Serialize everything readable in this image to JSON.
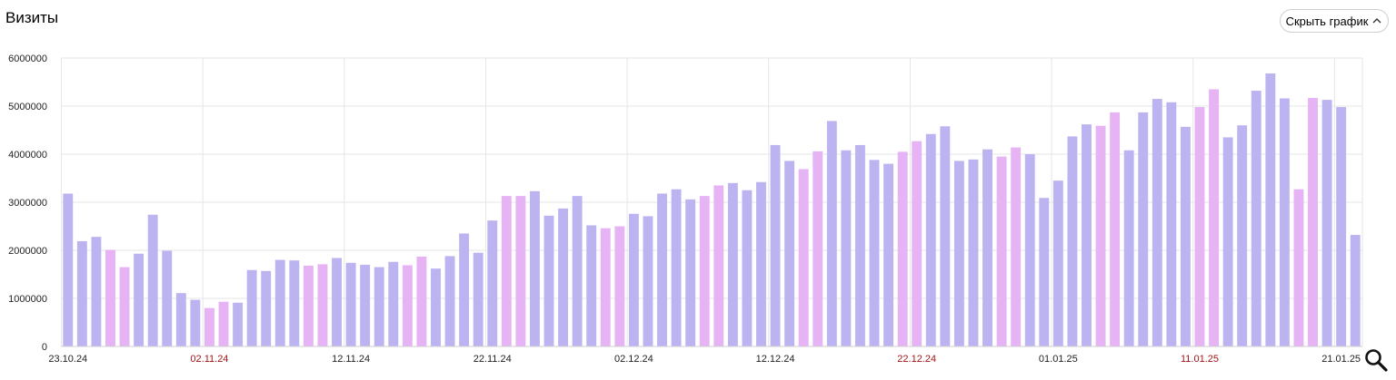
{
  "header": {
    "title": "Визиты",
    "hide_button_label": "Скрыть график",
    "hide_button_icon": "chevron-up-icon"
  },
  "zoom_icon": "magnifier-icon",
  "colors": {
    "weekday_bar": "#bcb4f0",
    "weekend_bar": "#e6b3f4",
    "grid": "#e6e6e6",
    "holiday_label": "#a31515"
  },
  "chart_data": {
    "type": "bar",
    "title": "Визиты",
    "xlabel": "",
    "ylabel": "",
    "ylim": [
      0,
      6000000
    ],
    "y_ticks": [
      "0",
      "1000000",
      "2000000",
      "3000000",
      "4000000",
      "5000000",
      "6000000"
    ],
    "grid": true,
    "x_tick_labels": [
      {
        "label": "23.10.24",
        "index": 0,
        "holiday": false
      },
      {
        "label": "02.11.24",
        "index": 10,
        "holiday": true
      },
      {
        "label": "12.11.24",
        "index": 20,
        "holiday": false
      },
      {
        "label": "22.11.24",
        "index": 30,
        "holiday": false
      },
      {
        "label": "02.12.24",
        "index": 40,
        "holiday": false
      },
      {
        "label": "12.12.24",
        "index": 50,
        "holiday": false
      },
      {
        "label": "22.12.24",
        "index": 60,
        "holiday": true
      },
      {
        "label": "01.01.25",
        "index": 70,
        "holiday": false
      },
      {
        "label": "11.01.25",
        "index": 80,
        "holiday": true
      },
      {
        "label": "21.01.25",
        "index": 90,
        "holiday": false
      }
    ],
    "start_date": "23.10.24",
    "series": [
      {
        "values": [
          3180000,
          2190000,
          2280000,
          2010000,
          1650000,
          1930000,
          2740000,
          1990000,
          1110000,
          970000,
          800000,
          930000,
          910000,
          1590000,
          1570000,
          1800000,
          1790000,
          1680000,
          1710000,
          1840000,
          1740000,
          1700000,
          1650000,
          1760000,
          1690000,
          1870000,
          1620000,
          1880000,
          2350000,
          1950000,
          2620000,
          3130000,
          3130000,
          3230000,
          2720000,
          2870000,
          3130000,
          2520000,
          2460000,
          2500000,
          2760000,
          2710000,
          3180000,
          3270000,
          3060000,
          3130000,
          3350000,
          3400000,
          3250000,
          3420000,
          4190000,
          3860000,
          3690000,
          4060000,
          4690000,
          4080000,
          4190000,
          3880000,
          3800000,
          4050000,
          4270000,
          4420000,
          4580000,
          3860000,
          3890000,
          4100000,
          3950000,
          4140000,
          4000000,
          3090000,
          3450000,
          4370000,
          4620000,
          4590000,
          4870000,
          4080000,
          4870000,
          5150000,
          5080000,
          4570000,
          4980000,
          5350000,
          4350000,
          4600000,
          5320000,
          5680000,
          5160000,
          3270000,
          5170000,
          5130000,
          4980000,
          2320000
        ],
        "weekend": [
          false,
          false,
          false,
          true,
          true,
          false,
          false,
          false,
          false,
          false,
          true,
          true,
          false,
          false,
          false,
          false,
          false,
          true,
          true,
          false,
          false,
          false,
          false,
          false,
          true,
          true,
          false,
          false,
          false,
          false,
          false,
          true,
          true,
          false,
          false,
          false,
          false,
          false,
          true,
          true,
          false,
          false,
          false,
          false,
          false,
          true,
          true,
          false,
          false,
          false,
          false,
          false,
          true,
          true,
          false,
          false,
          false,
          false,
          false,
          true,
          true,
          false,
          false,
          false,
          false,
          false,
          true,
          true,
          false,
          false,
          false,
          false,
          false,
          true,
          true,
          false,
          false,
          false,
          false,
          false,
          true,
          true,
          false,
          false,
          false,
          false,
          false,
          true,
          true,
          false,
          false,
          false
        ]
      }
    ],
    "legend": "none"
  }
}
